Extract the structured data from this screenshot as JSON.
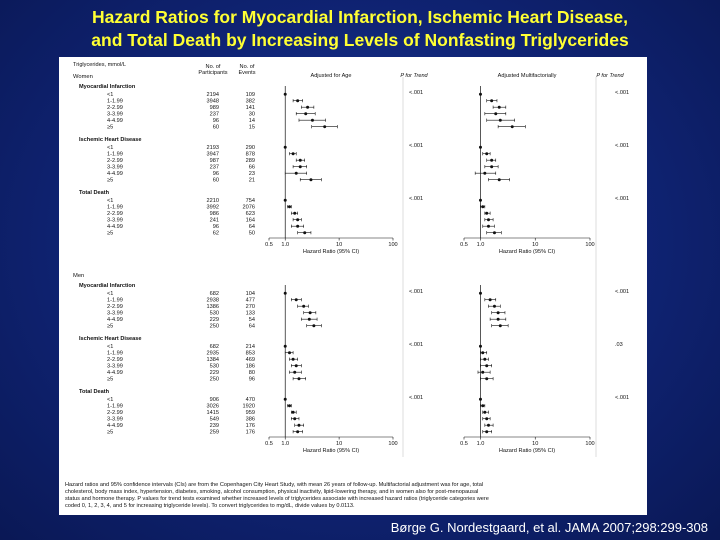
{
  "title_line1": "Hazard Ratios for Myocardial Infarction, Ischemic Heart Disease,",
  "title_line2": "and Total Death by Increasing Levels of Nonfasting Triglycerides",
  "citation": "Børge G. Nordestgaard, et al. JAMA 2007;298:299-308",
  "headers": {
    "trig": "Triglycerides, mmol/L",
    "participants": "No. of\nParticipants",
    "events": "No. of\nEvents",
    "adj_age": "Adjusted for Age",
    "p_trend": "P for Trend",
    "adj_multi": "Adjusted Multifactorially"
  },
  "footnote": "Hazard ratios and 95% confidence intervals (CIs) are from the Copenhagen City Heart Study, with mean 26 years of follow-up. Multifactorial adjustment was for age, total cholesterol, body mass index, hypertension, diabetes, smoking, alcohol consumption, physical inactivity, lipid-lowering therapy, and in women also for post-menopausal status and hormone therapy. P values for trend tests examined whether increased levels of triglycerides associate with increased hazard ratios (triglyceride categories were coded 0, 1, 2, 3, 4, and 5 for increasing triglyceride levels). To convert triglycerides to mg/dL, divide values by 0.0113.",
  "chart_data": {
    "type": "forest",
    "xlabel": "Hazard Ratio (95% CI)",
    "scale": "log",
    "ticks": [
      0.5,
      1.0,
      10,
      100
    ],
    "tick_labels": [
      "0.5",
      "1.0",
      "10",
      "100"
    ],
    "xlim": [
      0.5,
      100
    ],
    "sexes": [
      {
        "label": "Women",
        "outcomes": [
          {
            "label": "Myocardial Infarction",
            "p_age": "<.001",
            "p_multi": "<.001",
            "rows": [
              {
                "cat": "<1",
                "n": "2194",
                "events": "109",
                "age": [
                  1.0,
                  1.0,
                  1.0
                ],
                "multi": [
                  1.0,
                  1.0,
                  1.0
                ]
              },
              {
                "cat": "1-1.99",
                "n": "3948",
                "events": "382",
                "age": [
                  1.7,
                  1.4,
                  2.1
                ],
                "multi": [
                  1.6,
                  1.3,
                  2.0
                ]
              },
              {
                "cat": "2-2.99",
                "n": "989",
                "events": "141",
                "age": [
                  2.6,
                  2.0,
                  3.4
                ],
                "multi": [
                  2.2,
                  1.7,
                  2.9
                ]
              },
              {
                "cat": "3-3.99",
                "n": "237",
                "events": "30",
                "age": [
                  2.4,
                  1.6,
                  3.6
                ],
                "multi": [
                  1.9,
                  1.2,
                  2.9
                ]
              },
              {
                "cat": "4-4.99",
                "n": "96",
                "events": "14",
                "age": [
                  3.2,
                  1.8,
                  5.6
                ],
                "multi": [
                  2.3,
                  1.3,
                  4.2
                ]
              },
              {
                "cat": "≥5",
                "n": "60",
                "events": "15",
                "age": [
                  5.4,
                  3.1,
                  9.3
                ],
                "multi": [
                  3.8,
                  2.1,
                  6.6
                ]
              }
            ]
          },
          {
            "label": "Ischemic Heart Disease",
            "p_age": "<.001",
            "p_multi": "<.001",
            "rows": [
              {
                "cat": "<1",
                "n": "2193",
                "events": "290",
                "age": [
                  1.0,
                  1.0,
                  1.0
                ],
                "multi": [
                  1.0,
                  1.0,
                  1.0
                ]
              },
              {
                "cat": "1-1.99",
                "n": "3947",
                "events": "878",
                "age": [
                  1.4,
                  1.2,
                  1.6
                ],
                "multi": [
                  1.3,
                  1.1,
                  1.5
                ]
              },
              {
                "cat": "2-2.99",
                "n": "987",
                "events": "289",
                "age": [
                  1.9,
                  1.6,
                  2.3
                ],
                "multi": [
                  1.6,
                  1.3,
                  1.9
                ]
              },
              {
                "cat": "3-3.99",
                "n": "237",
                "events": "66",
                "age": [
                  1.9,
                  1.4,
                  2.5
                ],
                "multi": [
                  1.6,
                  1.2,
                  2.1
                ]
              },
              {
                "cat": "4-4.99",
                "n": "96",
                "events": "23",
                "age": [
                  1.6,
                  1.0,
                  2.5
                ],
                "multi": [
                  1.2,
                  0.8,
                  1.9
                ]
              },
              {
                "cat": "≥5",
                "n": "60",
                "events": "21",
                "age": [
                  3.0,
                  1.9,
                  4.7
                ],
                "multi": [
                  2.2,
                  1.4,
                  3.4
                ]
              }
            ]
          },
          {
            "label": "Total Death",
            "p_age": "<.001",
            "p_multi": "<.001",
            "rows": [
              {
                "cat": "<1",
                "n": "2210",
                "events": "754",
                "age": [
                  1.0,
                  1.0,
                  1.0
                ],
                "multi": [
                  1.0,
                  1.0,
                  1.0
                ]
              },
              {
                "cat": "1-1.99",
                "n": "3992",
                "events": "2076",
                "age": [
                  1.2,
                  1.1,
                  1.3
                ],
                "multi": [
                  1.1,
                  1.0,
                  1.2
                ]
              },
              {
                "cat": "2-2.99",
                "n": "986",
                "events": "623",
                "age": [
                  1.5,
                  1.3,
                  1.7
                ],
                "multi": [
                  1.3,
                  1.2,
                  1.5
                ]
              },
              {
                "cat": "3-3.99",
                "n": "241",
                "events": "164",
                "age": [
                  1.7,
                  1.4,
                  2.0
                ],
                "multi": [
                  1.4,
                  1.2,
                  1.7
                ]
              },
              {
                "cat": "4-4.99",
                "n": "96",
                "events": "64",
                "age": [
                  1.7,
                  1.3,
                  2.2
                ],
                "multi": [
                  1.4,
                  1.1,
                  1.8
                ]
              },
              {
                "cat": "≥5",
                "n": "62",
                "events": "50",
                "age": [
                  2.3,
                  1.7,
                  3.0
                ],
                "multi": [
                  1.8,
                  1.3,
                  2.4
                ]
              }
            ]
          }
        ]
      },
      {
        "label": "Men",
        "outcomes": [
          {
            "label": "Myocardial Infarction",
            "p_age": "<.001",
            "p_multi": "<.001",
            "rows": [
              {
                "cat": "<1",
                "n": "682",
                "events": "104",
                "age": [
                  1.0,
                  1.0,
                  1.0
                ],
                "multi": [
                  1.0,
                  1.0,
                  1.0
                ]
              },
              {
                "cat": "1-1.99",
                "n": "2938",
                "events": "477",
                "age": [
                  1.6,
                  1.3,
                  2.0
                ],
                "multi": [
                  1.5,
                  1.2,
                  1.9
                ]
              },
              {
                "cat": "2-2.99",
                "n": "1386",
                "events": "270",
                "age": [
                  2.2,
                  1.7,
                  2.7
                ],
                "multi": [
                  1.8,
                  1.4,
                  2.3
                ]
              },
              {
                "cat": "3-3.99",
                "n": "530",
                "events": "133",
                "age": [
                  2.9,
                  2.2,
                  3.7
                ],
                "multi": [
                  2.1,
                  1.6,
                  2.8
                ]
              },
              {
                "cat": "4-4.99",
                "n": "229",
                "events": "54",
                "age": [
                  2.8,
                  2.0,
                  3.9
                ],
                "multi": [
                  2.1,
                  1.5,
                  2.9
                ]
              },
              {
                "cat": "≥5",
                "n": "250",
                "events": "64",
                "age": [
                  3.4,
                  2.5,
                  4.7
                ],
                "multi": [
                  2.3,
                  1.6,
                  3.2
                ]
              }
            ]
          },
          {
            "label": "Ischemic Heart Disease",
            "p_age": "<.001",
            "p_multi": ".03",
            "rows": [
              {
                "cat": "<1",
                "n": "682",
                "events": "214",
                "age": [
                  1.0,
                  1.0,
                  1.0
                ],
                "multi": [
                  1.0,
                  1.0,
                  1.0
                ]
              },
              {
                "cat": "1-1.99",
                "n": "2935",
                "events": "853",
                "age": [
                  1.2,
                  1.0,
                  1.4
                ],
                "multi": [
                  1.1,
                  1.0,
                  1.3
                ]
              },
              {
                "cat": "2-2.99",
                "n": "1384",
                "events": "469",
                "age": [
                  1.4,
                  1.2,
                  1.7
                ],
                "multi": [
                  1.2,
                  1.0,
                  1.4
                ]
              },
              {
                "cat": "3-3.99",
                "n": "530",
                "events": "186",
                "age": [
                  1.6,
                  1.3,
                  2.0
                ],
                "multi": [
                  1.3,
                  1.0,
                  1.6
                ]
              },
              {
                "cat": "4-4.99",
                "n": "229",
                "events": "80",
                "age": [
                  1.5,
                  1.2,
                  2.0
                ],
                "multi": [
                  1.1,
                  0.9,
                  1.5
                ]
              },
              {
                "cat": "≥5",
                "n": "250",
                "events": "96",
                "age": [
                  1.8,
                  1.4,
                  2.4
                ],
                "multi": [
                  1.3,
                  1.0,
                  1.7
                ]
              }
            ]
          },
          {
            "label": "Total Death",
            "p_age": "<.001",
            "p_multi": "<.001",
            "rows": [
              {
                "cat": "<1",
                "n": "906",
                "events": "470",
                "age": [
                  1.0,
                  1.0,
                  1.0
                ],
                "multi": [
                  1.0,
                  1.0,
                  1.0
                ]
              },
              {
                "cat": "1-1.99",
                "n": "3026",
                "events": "1920",
                "age": [
                  1.2,
                  1.1,
                  1.3
                ],
                "multi": [
                  1.1,
                  1.0,
                  1.2
                ]
              },
              {
                "cat": "2-2.99",
                "n": "1415",
                "events": "959",
                "age": [
                  1.4,
                  1.3,
                  1.6
                ],
                "multi": [
                  1.2,
                  1.1,
                  1.4
                ]
              },
              {
                "cat": "3-3.99",
                "n": "549",
                "events": "386",
                "age": [
                  1.5,
                  1.3,
                  1.8
                ],
                "multi": [
                  1.3,
                  1.1,
                  1.5
                ]
              },
              {
                "cat": "4-4.99",
                "n": "239",
                "events": "176",
                "age": [
                  1.8,
                  1.5,
                  2.2
                ],
                "multi": [
                  1.4,
                  1.2,
                  1.7
                ]
              },
              {
                "cat": "≥5",
                "n": "259",
                "events": "176",
                "age": [
                  1.7,
                  1.4,
                  2.1
                ],
                "multi": [
                  1.3,
                  1.1,
                  1.6
                ]
              }
            ]
          }
        ]
      }
    ]
  }
}
